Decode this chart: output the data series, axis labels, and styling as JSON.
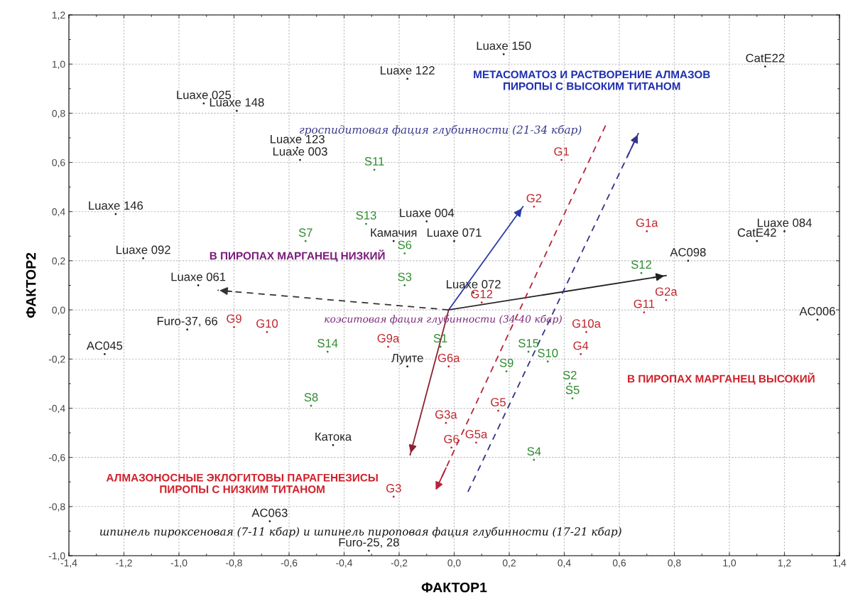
{
  "chart_data": {
    "type": "scatter",
    "xlabel": "ФАКТОР1",
    "ylabel": "ФАКТОР2",
    "xlim": [
      -1.4,
      1.4
    ],
    "ylim": [
      -1.0,
      1.2
    ],
    "xticks": [
      {
        "value": -1.4,
        "label": "-1,4"
      },
      {
        "value": -1.2,
        "label": "-1,2"
      },
      {
        "value": -1.0,
        "label": "-1,0"
      },
      {
        "value": -0.8,
        "label": "-0,8"
      },
      {
        "value": -0.6,
        "label": "-0,6"
      },
      {
        "value": -0.4,
        "label": "-0,4"
      },
      {
        "value": -0.2,
        "label": "-0,2"
      },
      {
        "value": 0,
        "label": "0,0"
      },
      {
        "value": 0.2,
        "label": "0,2"
      },
      {
        "value": 0.4,
        "label": "0,4"
      },
      {
        "value": 0.6,
        "label": "0,6"
      },
      {
        "value": 0.8,
        "label": "0,8"
      },
      {
        "value": 1.0,
        "label": "1,0"
      },
      {
        "value": 1.2,
        "label": "1,2"
      },
      {
        "value": 1.4,
        "label": "1,4"
      }
    ],
    "yticks": [
      {
        "value": -1.0,
        "label": "-1,0"
      },
      {
        "value": -0.8,
        "label": "-0,8"
      },
      {
        "value": -0.6,
        "label": "-0,6"
      },
      {
        "value": -0.4,
        "label": "-0,4"
      },
      {
        "value": -0.2,
        "label": "-0,2"
      },
      {
        "value": 0,
        "label": "0,0"
      },
      {
        "value": 0.2,
        "label": "0,2"
      },
      {
        "value": 0.4,
        "label": "0,4"
      },
      {
        "value": 0.6,
        "label": "0,6"
      },
      {
        "value": 0.8,
        "label": "0,8"
      },
      {
        "value": 1.0,
        "label": "1,0"
      },
      {
        "value": 1.2,
        "label": "1,2"
      }
    ],
    "grid": true,
    "series": [
      {
        "marker": "circle",
        "color": "#222222",
        "x": [
          0.18,
          -0.17,
          1.13,
          -0.91,
          -0.79,
          -0.57,
          -0.56,
          -1.23,
          -1.13,
          -0.93,
          -0.1,
          -0.22,
          0.0,
          0.07,
          1.2,
          1.1,
          0.85,
          1.32,
          -0.97,
          -1.27,
          -0.17,
          -0.44,
          -0.67,
          -0.31
        ],
        "values": [
          1.04,
          0.94,
          0.99,
          0.84,
          0.81,
          0.66,
          0.61,
          0.39,
          0.21,
          0.1,
          0.36,
          0.28,
          0.28,
          0.07,
          0.32,
          0.28,
          0.2,
          -0.04,
          -0.08,
          -0.18,
          -0.23,
          -0.55,
          -0.86,
          -0.98
        ],
        "value_labels": [
          "Luaxe 150",
          "Luaxe 122",
          "CatE22",
          "Luaxe 025",
          "Luaxe 148",
          "Luaxe 123",
          "Luaxe 003",
          "Luaxe 146",
          "Luaxe 092",
          "Luaxe 061",
          "Luaxe 004",
          "Камачия",
          "Luaxe 071",
          "Luaxe 072",
          "Luaxe 084",
          "CatE42",
          "AC098",
          "AC006",
          "Furo-37, 66",
          "AC045",
          "Луите",
          "Катока",
          "AC063",
          "Furo-25, 28"
        ]
      },
      {
        "marker": "circle",
        "color": "#c0262d",
        "x": [
          0.39,
          0.29,
          0.7,
          0.77,
          0.69,
          0.1,
          -0.8,
          -0.68,
          -0.24,
          -0.02,
          0.48,
          0.46,
          0.16,
          -0.03,
          -0.01,
          0.08,
          -0.22
        ],
        "values": [
          0.61,
          0.42,
          0.32,
          0.04,
          -0.01,
          0.03,
          -0.07,
          -0.09,
          -0.15,
          -0.23,
          -0.09,
          -0.18,
          -0.41,
          -0.46,
          -0.56,
          -0.54,
          -0.76
        ],
        "value_labels": [
          "G1",
          "G2",
          "G1a",
          "G2a",
          "G11",
          "G12",
          "G9",
          "G10",
          "G9a",
          "G6a",
          "G10a",
          "G4",
          "G5",
          "G3a",
          "G6",
          "G5a",
          "G3"
        ]
      },
      {
        "marker": "circle",
        "color": "#2e8b2e",
        "x": [
          -0.29,
          -0.32,
          -0.54,
          -0.18,
          -0.18,
          0.68,
          -0.05,
          -0.46,
          0.27,
          0.34,
          0.19,
          0.42,
          0.43,
          -0.52,
          0.29
        ],
        "values": [
          0.57,
          0.35,
          0.28,
          0.23,
          0.1,
          0.15,
          -0.15,
          -0.17,
          -0.17,
          -0.21,
          -0.25,
          -0.3,
          -0.36,
          -0.39,
          -0.61
        ],
        "value_labels": [
          "S11",
          "S13",
          "S7",
          "S6",
          "S3",
          "S12",
          "S1",
          "S14",
          "S15",
          "S10",
          "S9",
          "S2",
          "S5",
          "S8",
          "S4"
        ]
      },
      {
        "type": "line",
        "color": "#2b3aa8",
        "line_style": "solid",
        "x": [
          -0.02,
          0.25
        ],
        "values": [
          0,
          0.42
        ]
      },
      {
        "type": "line",
        "color": "#222222",
        "line_style": "solid",
        "x": [
          -0.02,
          0.77
        ],
        "values": [
          0,
          0.14
        ]
      },
      {
        "type": "line",
        "color": "#8b2232",
        "line_style": "solid",
        "x": [
          -0.02,
          -0.16
        ],
        "values": [
          0,
          -0.59
        ]
      },
      {
        "type": "line",
        "color": "#333333",
        "line_style": "dashed",
        "x": [
          -0.02,
          -0.86
        ],
        "values": [
          0,
          0.08
        ]
      },
      {
        "type": "line",
        "color": "#b8243c",
        "line_style": "dashed",
        "x": [
          0.55,
          -0.07
        ],
        "values": [
          0.75,
          -0.74
        ]
      },
      {
        "type": "line",
        "color": "#33338a",
        "line_style": "dashed",
        "x": [
          0.05,
          0.67
        ],
        "values": [
          -0.74,
          0.72
        ]
      }
    ],
    "annotations": [
      "МЕТАСОМАТОЗ И РАСТВОРЕНИЕ АЛМАЗОВ\nПИРОПЫ С ВЫСОКИМ ТИТАНОМ",
      "гроспидитовая фация глубинности (21-34 кбар)",
      "В ПИРОПАХ МАРГАНЕЦ НИЗКИЙ",
      "коэситовая фация глубинности (34-40 кбар)",
      "В ПИРОПАХ МАРГАНЕЦ ВЫСОКИЙ",
      "АЛМАЗОНОСНЫЕ ЭКЛОГИТОВЫ ПАРАГЕНЕЗИСЫ\nПИРОПЫ С НИЗКИМ ТИТАНОМ",
      "шпинель пироксеновая (7-11 кбар) и шпинель пироповая фация глубинности (17-21 кбар)"
    ]
  }
}
